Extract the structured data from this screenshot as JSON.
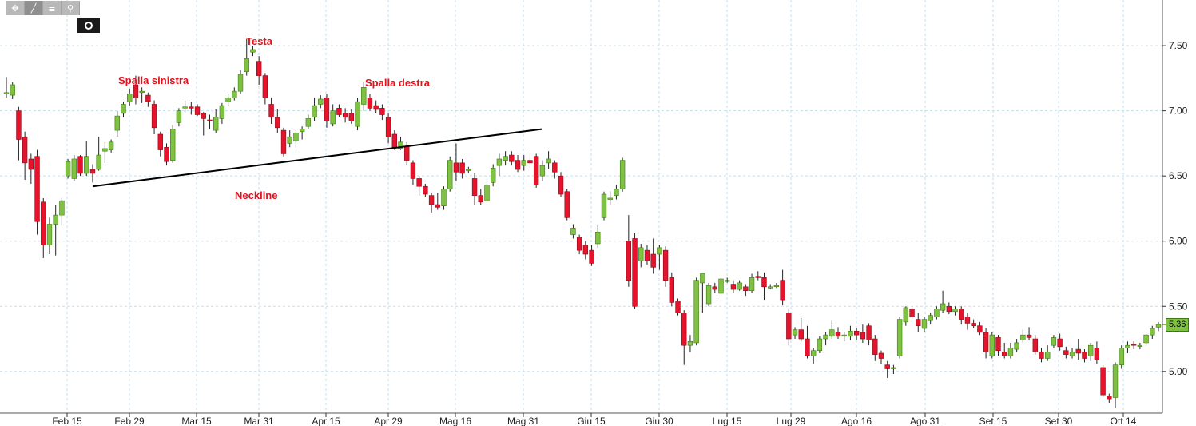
{
  "toolbar": {
    "tools": [
      {
        "name": "crosshair-icon",
        "glyph": "✥"
      },
      {
        "name": "draw-line-icon",
        "glyph": "╱"
      },
      {
        "name": "list-icon",
        "glyph": "≣"
      },
      {
        "name": "zoom-icon",
        "glyph": "⚲"
      }
    ]
  },
  "annotations": {
    "head": "Testa",
    "left_shoulder": "Spalla sinistra",
    "right_shoulder": "Spalla destra",
    "neckline": "Neckline"
  },
  "last_price_label": "5.36",
  "colors": {
    "up": "#7fc241",
    "down": "#e5132b",
    "annotation": "#e5101c",
    "grid": "#c6dde8"
  },
  "chart_data": {
    "type": "candlestick",
    "title": "",
    "xlabel": "",
    "ylabel": "",
    "ylim": [
      4.68,
      7.85
    ],
    "y_ticks": [
      "7.50",
      "7.00",
      "6.50",
      "6.00",
      "5.50",
      "5.00"
    ],
    "x_ticks": [
      "Feb 15",
      "Feb 29",
      "Mar 15",
      "Mar 31",
      "Apr 15",
      "Apr 29",
      "Mag 16",
      "Mag 31",
      "Giu 15",
      "Giu 30",
      "Lug 15",
      "Lug 29",
      "Ago 16",
      "Ago 31",
      "Set 15",
      "Set 30",
      "Ott 14"
    ],
    "grid": true,
    "neckline": [
      6.42,
      6.86
    ],
    "candles": [
      [
        7.13,
        7.14,
        7.1,
        7.26
      ],
      [
        7.12,
        7.2,
        7.09,
        7.22
      ],
      [
        7.0,
        6.78,
        6.62,
        7.03
      ],
      [
        6.8,
        6.6,
        6.47,
        6.84
      ],
      [
        6.63,
        6.55,
        6.44,
        6.67
      ],
      [
        6.65,
        6.15,
        6.05,
        6.7
      ],
      [
        6.3,
        5.97,
        5.87,
        6.33
      ],
      [
        5.97,
        6.13,
        5.9,
        6.18
      ],
      [
        6.13,
        6.2,
        5.89,
        6.28
      ],
      [
        6.2,
        6.31,
        6.12,
        6.33
      ],
      [
        6.5,
        6.61,
        6.48,
        6.63
      ],
      [
        6.48,
        6.63,
        6.46,
        6.66
      ],
      [
        6.65,
        6.52,
        6.5,
        6.66
      ],
      [
        6.52,
        6.65,
        6.5,
        6.77
      ],
      [
        6.55,
        6.52,
        6.45,
        6.59
      ],
      [
        6.55,
        6.66,
        6.54,
        6.8
      ],
      [
        6.69,
        6.71,
        6.6,
        6.76
      ],
      [
        6.7,
        6.76,
        6.68,
        6.78
      ],
      [
        6.85,
        6.96,
        6.8,
        7.0
      ],
      [
        6.98,
        7.05,
        6.95,
        7.07
      ],
      [
        7.07,
        7.13,
        7.04,
        7.17
      ],
      [
        7.2,
        7.1,
        7.05,
        7.27
      ],
      [
        7.14,
        7.15,
        7.06,
        7.18
      ],
      [
        7.12,
        7.07,
        7.03,
        7.14
      ],
      [
        7.05,
        6.87,
        6.82,
        7.08
      ],
      [
        6.82,
        6.7,
        6.65,
        6.84
      ],
      [
        6.72,
        6.61,
        6.58,
        6.75
      ],
      [
        6.62,
        6.86,
        6.6,
        6.89
      ],
      [
        6.91,
        7.0,
        6.88,
        7.02
      ],
      [
        7.03,
        7.03,
        6.99,
        7.08
      ],
      [
        7.03,
        7.02,
        6.97,
        7.07
      ],
      [
        7.03,
        6.97,
        6.96,
        7.05
      ],
      [
        6.98,
        6.94,
        6.81,
        6.99
      ],
      [
        6.93,
        6.92,
        6.86,
        6.97
      ],
      [
        6.85,
        6.95,
        6.83,
        7.01
      ],
      [
        6.94,
        7.04,
        6.9,
        7.06
      ],
      [
        7.07,
        7.1,
        7.04,
        7.13
      ],
      [
        7.1,
        7.15,
        7.08,
        7.18
      ],
      [
        7.15,
        7.28,
        7.13,
        7.31
      ],
      [
        7.3,
        7.4,
        7.27,
        7.55
      ],
      [
        7.45,
        7.47,
        7.42,
        7.5
      ],
      [
        7.38,
        7.27,
        7.2,
        7.42
      ],
      [
        7.27,
        7.1,
        7.05,
        7.29
      ],
      [
        7.05,
        6.95,
        6.9,
        7.1
      ],
      [
        6.95,
        6.87,
        6.83,
        7.01
      ],
      [
        6.85,
        6.67,
        6.65,
        6.87
      ],
      [
        6.75,
        6.8,
        6.72,
        6.85
      ],
      [
        6.77,
        6.83,
        6.72,
        6.86
      ],
      [
        6.84,
        6.86,
        6.78,
        6.88
      ],
      [
        6.88,
        6.94,
        6.86,
        6.97
      ],
      [
        6.95,
        7.04,
        6.92,
        7.1
      ],
      [
        7.05,
        7.09,
        7.02,
        7.12
      ],
      [
        7.1,
        6.92,
        6.87,
        7.13
      ],
      [
        6.9,
        7.0,
        6.88,
        7.05
      ],
      [
        7.02,
        6.97,
        6.95,
        7.05
      ],
      [
        6.98,
        6.95,
        6.91,
        7.02
      ],
      [
        6.98,
        6.92,
        6.9,
        7.01
      ],
      [
        6.88,
        7.07,
        6.85,
        7.1
      ],
      [
        7.05,
        7.18,
        7.0,
        7.22
      ],
      [
        7.1,
        7.02,
        7.0,
        7.13
      ],
      [
        7.04,
        7.01,
        6.98,
        7.08
      ],
      [
        7.02,
        6.97,
        6.93,
        7.05
      ],
      [
        6.95,
        6.8,
        6.75,
        6.98
      ],
      [
        6.82,
        6.72,
        6.7,
        6.85
      ],
      [
        6.71,
        6.76,
        6.7,
        6.8
      ],
      [
        6.73,
        6.62,
        6.58,
        6.76
      ],
      [
        6.6,
        6.48,
        6.43,
        6.62
      ],
      [
        6.48,
        6.42,
        6.35,
        6.5
      ],
      [
        6.42,
        6.36,
        6.34,
        6.44
      ],
      [
        6.35,
        6.28,
        6.22,
        6.37
      ],
      [
        6.28,
        6.26,
        6.24,
        6.37
      ],
      [
        6.27,
        6.4,
        6.24,
        6.42
      ],
      [
        6.4,
        6.62,
        6.38,
        6.65
      ],
      [
        6.6,
        6.53,
        6.46,
        6.75
      ],
      [
        6.6,
        6.52,
        6.48,
        6.63
      ],
      [
        6.55,
        6.55,
        6.52,
        6.57
      ],
      [
        6.48,
        6.35,
        6.28,
        6.52
      ],
      [
        6.35,
        6.3,
        6.28,
        6.4
      ],
      [
        6.31,
        6.43,
        6.29,
        6.48
      ],
      [
        6.45,
        6.56,
        6.42,
        6.59
      ],
      [
        6.58,
        6.63,
        6.5,
        6.67
      ],
      [
        6.62,
        6.65,
        6.58,
        6.69
      ],
      [
        6.66,
        6.61,
        6.58,
        6.69
      ],
      [
        6.62,
        6.55,
        6.53,
        6.66
      ],
      [
        6.58,
        6.62,
        6.54,
        6.66
      ],
      [
        6.62,
        6.6,
        6.55,
        6.68
      ],
      [
        6.65,
        6.43,
        6.41,
        6.67
      ],
      [
        6.5,
        6.58,
        6.46,
        6.62
      ],
      [
        6.6,
        6.63,
        6.55,
        6.69
      ],
      [
        6.6,
        6.53,
        6.48,
        6.62
      ],
      [
        6.5,
        6.36,
        6.34,
        6.53
      ],
      [
        6.38,
        6.18,
        6.16,
        6.4
      ],
      [
        6.05,
        6.1,
        6.02,
        6.13
      ],
      [
        6.03,
        5.93,
        5.9,
        6.05
      ],
      [
        5.97,
        5.9,
        5.86,
        6.0
      ],
      [
        5.93,
        5.83,
        5.81,
        5.97
      ],
      [
        5.98,
        6.07,
        5.95,
        6.12
      ],
      [
        6.18,
        6.36,
        6.16,
        6.38
      ],
      [
        6.32,
        6.33,
        6.28,
        6.38
      ],
      [
        6.35,
        6.4,
        6.32,
        6.43
      ],
      [
        6.4,
        6.62,
        6.38,
        6.64
      ],
      [
        6.0,
        5.7,
        5.65,
        6.2
      ],
      [
        6.02,
        5.5,
        5.48,
        6.06
      ],
      [
        5.85,
        5.95,
        5.8,
        5.98
      ],
      [
        5.93,
        5.85,
        5.82,
        5.97
      ],
      [
        5.9,
        5.8,
        5.75,
        6.02
      ],
      [
        5.9,
        5.95,
        5.78,
        5.97
      ],
      [
        5.93,
        5.7,
        5.65,
        5.96
      ],
      [
        5.72,
        5.53,
        5.5,
        5.76
      ],
      [
        5.54,
        5.45,
        5.43,
        5.56
      ],
      [
        5.45,
        5.2,
        5.05,
        5.47
      ],
      [
        5.2,
        5.23,
        5.15,
        5.28
      ],
      [
        5.22,
        5.7,
        5.2,
        5.72
      ],
      [
        5.68,
        5.75,
        5.45,
        5.75
      ],
      [
        5.52,
        5.66,
        5.5,
        5.68
      ],
      [
        5.65,
        5.63,
        5.6,
        5.68
      ],
      [
        5.6,
        5.71,
        5.57,
        5.72
      ],
      [
        5.7,
        5.7,
        5.68,
        5.72
      ],
      [
        5.67,
        5.63,
        5.6,
        5.7
      ],
      [
        5.63,
        5.68,
        5.62,
        5.7
      ],
      [
        5.65,
        5.62,
        5.58,
        5.67
      ],
      [
        5.62,
        5.72,
        5.6,
        5.75
      ],
      [
        5.73,
        5.72,
        5.7,
        5.77
      ],
      [
        5.72,
        5.65,
        5.55,
        5.76
      ],
      [
        5.65,
        5.65,
        5.63,
        5.67
      ],
      [
        5.66,
        5.66,
        5.64,
        5.68
      ],
      [
        5.7,
        5.55,
        5.51,
        5.78
      ],
      [
        5.45,
        5.25,
        5.2,
        5.48
      ],
      [
        5.28,
        5.32,
        5.25,
        5.34
      ],
      [
        5.32,
        5.25,
        5.23,
        5.41
      ],
      [
        5.25,
        5.12,
        5.1,
        5.35
      ],
      [
        5.12,
        5.16,
        5.06,
        5.18
      ],
      [
        5.16,
        5.25,
        5.14,
        5.27
      ],
      [
        5.25,
        5.28,
        5.2,
        5.3
      ],
      [
        5.27,
        5.32,
        5.25,
        5.39
      ],
      [
        5.3,
        5.27,
        5.25,
        5.34
      ],
      [
        5.27,
        5.28,
        5.23,
        5.3
      ],
      [
        5.27,
        5.31,
        5.24,
        5.35
      ],
      [
        5.31,
        5.28,
        5.24,
        5.33
      ],
      [
        5.3,
        5.25,
        5.22,
        5.36
      ],
      [
        5.35,
        5.24,
        5.2,
        5.37
      ],
      [
        5.25,
        5.13,
        5.08,
        5.28
      ],
      [
        5.14,
        5.1,
        5.06,
        5.16
      ],
      [
        5.05,
        5.02,
        4.95,
        5.08
      ],
      [
        5.02,
        5.03,
        4.98,
        5.05
      ],
      [
        5.12,
        5.4,
        5.1,
        5.42
      ],
      [
        5.38,
        5.49,
        5.35,
        5.5
      ],
      [
        5.48,
        5.42,
        5.4,
        5.5
      ],
      [
        5.4,
        5.35,
        5.3,
        5.45
      ],
      [
        5.33,
        5.4,
        5.3,
        5.42
      ],
      [
        5.39,
        5.43,
        5.36,
        5.45
      ],
      [
        5.42,
        5.48,
        5.4,
        5.5
      ],
      [
        5.47,
        5.52,
        5.45,
        5.62
      ],
      [
        5.5,
        5.46,
        5.44,
        5.53
      ],
      [
        5.46,
        5.48,
        5.43,
        5.5
      ],
      [
        5.48,
        5.4,
        5.36,
        5.5
      ],
      [
        5.42,
        5.37,
        5.32,
        5.45
      ],
      [
        5.37,
        5.35,
        5.33,
        5.4
      ],
      [
        5.35,
        5.3,
        5.28,
        5.38
      ],
      [
        5.3,
        5.15,
        5.1,
        5.33
      ],
      [
        5.12,
        5.28,
        5.1,
        5.3
      ],
      [
        5.26,
        5.16,
        5.12,
        5.28
      ],
      [
        5.15,
        5.12,
        5.1,
        5.22
      ],
      [
        5.12,
        5.18,
        5.1,
        5.22
      ],
      [
        5.17,
        5.22,
        5.15,
        5.25
      ],
      [
        5.24,
        5.28,
        5.22,
        5.32
      ],
      [
        5.28,
        5.26,
        5.24,
        5.34
      ],
      [
        5.25,
        5.15,
        5.13,
        5.28
      ],
      [
        5.15,
        5.1,
        5.07,
        5.18
      ],
      [
        5.1,
        5.15,
        5.08,
        5.2
      ],
      [
        5.2,
        5.26,
        5.18,
        5.28
      ],
      [
        5.25,
        5.19,
        5.16,
        5.29
      ],
      [
        5.16,
        5.13,
        5.1,
        5.19
      ],
      [
        5.12,
        5.15,
        5.1,
        5.18
      ],
      [
        5.17,
        5.14,
        5.09,
        5.25
      ],
      [
        5.15,
        5.1,
        5.07,
        5.17
      ],
      [
        5.12,
        5.2,
        5.08,
        5.22
      ],
      [
        5.18,
        5.09,
        5.06,
        5.23
      ],
      [
        5.03,
        4.82,
        4.8,
        5.05
      ],
      [
        4.81,
        4.79,
        4.76,
        4.83
      ],
      [
        4.8,
        5.05,
        4.72,
        5.07
      ],
      [
        5.05,
        5.18,
        5.02,
        5.2
      ],
      [
        5.18,
        5.2,
        5.14,
        5.23
      ],
      [
        5.21,
        5.2,
        5.17,
        5.23
      ],
      [
        5.2,
        5.2,
        5.17,
        5.22
      ],
      [
        5.22,
        5.28,
        5.2,
        5.3
      ],
      [
        5.28,
        5.33,
        5.25,
        5.35
      ],
      [
        5.34,
        5.36,
        5.31,
        5.38
      ]
    ]
  }
}
